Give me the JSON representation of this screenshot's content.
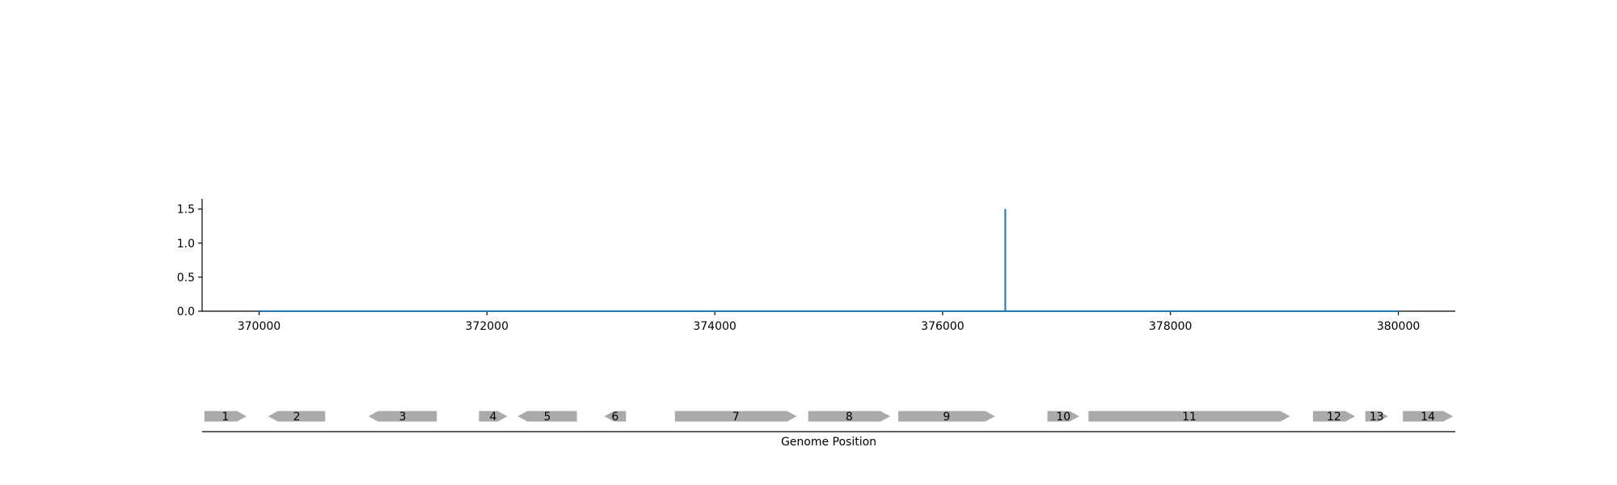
{
  "chart_data": {
    "type": "line",
    "title": "",
    "ylabel": "",
    "xlabel": "Genome Position",
    "xlim": [
      369500,
      380500
    ],
    "ylim": [
      0,
      1.65
    ],
    "yticks": [
      0.0,
      0.5,
      1.0,
      1.5
    ],
    "ytick_labels": [
      "0.0",
      "0.5",
      "1.0",
      "1.5"
    ],
    "xticks": [
      370000,
      372000,
      374000,
      376000,
      378000,
      380000
    ],
    "xtick_labels": [
      "370000",
      "372000",
      "374000",
      "376000",
      "378000",
      "380000"
    ],
    "line_color": "#1f77b4",
    "series": [
      {
        "x": [
          370000,
          376550,
          376550,
          376550,
          376560,
          380000
        ],
        "y": [
          0,
          0,
          1.5,
          0,
          0,
          0
        ]
      }
    ],
    "genes": [
      {
        "label": "1",
        "start": 369520,
        "end": 369890,
        "strand": "+"
      },
      {
        "label": "2",
        "start": 370080,
        "end": 370580,
        "strand": "-"
      },
      {
        "label": "3",
        "start": 370960,
        "end": 371560,
        "strand": "-"
      },
      {
        "label": "4",
        "start": 371930,
        "end": 372180,
        "strand": "+"
      },
      {
        "label": "5",
        "start": 372270,
        "end": 372790,
        "strand": "-"
      },
      {
        "label": "6",
        "start": 373030,
        "end": 373220,
        "strand": "-"
      },
      {
        "label": "7",
        "start": 373650,
        "end": 374720,
        "strand": "+"
      },
      {
        "label": "8",
        "start": 374820,
        "end": 375540,
        "strand": "+"
      },
      {
        "label": "9",
        "start": 375610,
        "end": 376460,
        "strand": "+"
      },
      {
        "label": "10",
        "start": 376920,
        "end": 377200,
        "strand": "+"
      },
      {
        "label": "11",
        "start": 377280,
        "end": 379050,
        "strand": "+"
      },
      {
        "label": "12",
        "start": 379250,
        "end": 379620,
        "strand": "+"
      },
      {
        "label": "13",
        "start": 379710,
        "end": 379910,
        "strand": "+"
      },
      {
        "label": "14",
        "start": 380040,
        "end": 380480,
        "strand": "+"
      }
    ],
    "gene_color": "#aaaaaa"
  }
}
